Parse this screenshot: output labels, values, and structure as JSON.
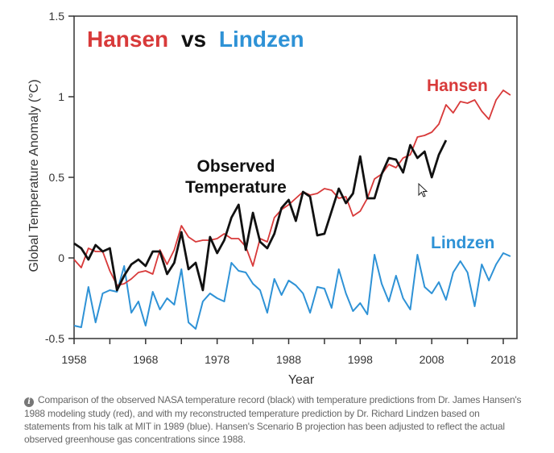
{
  "chart_data": {
    "type": "line",
    "title": "Hansen vs Lindzen",
    "title_parts": [
      {
        "text": "Hansen",
        "color": "#d83a3a"
      },
      {
        "text": "vs",
        "color": "#111111"
      },
      {
        "text": "Lindzen",
        "color": "#2e92d6"
      }
    ],
    "xlabel": "Year",
    "ylabel": "Global Temperature Anomaly (°C)",
    "xlim": [
      1958,
      2020
    ],
    "ylim": [
      -0.5,
      1.5
    ],
    "x_ticks": [
      1958,
      1968,
      1978,
      1988,
      1998,
      2008,
      2018
    ],
    "x_minor_ticks": [
      1963,
      1973,
      1983,
      1993,
      2003,
      2013
    ],
    "y_ticks": [
      -0.5,
      0,
      0.5,
      1,
      1.5
    ],
    "y_tick_labels": [
      "-0.5",
      "0",
      "0.5",
      "1",
      "1.5"
    ],
    "grid": false,
    "series": [
      {
        "name": "Hansen",
        "color": "#d83a3a",
        "x_start": 1958,
        "values": [
          -0.01,
          -0.06,
          0.06,
          0.04,
          0.04,
          -0.08,
          -0.17,
          -0.16,
          -0.13,
          -0.09,
          -0.08,
          -0.1,
          0.05,
          -0.04,
          0.05,
          0.2,
          0.13,
          0.1,
          0.11,
          0.11,
          0.12,
          0.15,
          0.12,
          0.12,
          0.07,
          -0.05,
          0.12,
          0.1,
          0.25,
          0.3,
          0.33,
          0.37,
          0.41,
          0.39,
          0.4,
          0.43,
          0.42,
          0.37,
          0.38,
          0.26,
          0.29,
          0.37,
          0.49,
          0.52,
          0.58,
          0.56,
          0.62,
          0.64,
          0.75,
          0.76,
          0.78,
          0.83,
          0.95,
          0.9,
          0.97,
          0.96,
          0.98,
          0.91,
          0.86,
          0.98,
          1.04,
          1.01
        ],
        "label": "Hansen"
      },
      {
        "name": "Observed Temperature",
        "color": "#111111",
        "x_start": 1958,
        "values": [
          0.09,
          0.06,
          -0.01,
          0.08,
          0.04,
          0.06,
          -0.2,
          -0.11,
          -0.04,
          -0.01,
          -0.05,
          0.04,
          0.04,
          -0.1,
          -0.03,
          0.16,
          -0.07,
          -0.03,
          -0.2,
          0.13,
          0.03,
          0.11,
          0.25,
          0.33,
          0.05,
          0.28,
          0.1,
          0.06,
          0.15,
          0.31,
          0.36,
          0.23,
          0.41,
          0.38,
          0.14,
          0.15,
          0.29,
          0.43,
          0.34,
          0.4,
          0.63,
          0.37,
          0.37,
          0.52,
          0.62,
          0.61,
          0.53,
          0.7,
          0.62,
          0.66,
          0.5,
          0.64,
          0.73
        ],
        "label": "Observed\nTemperature"
      },
      {
        "name": "Lindzen",
        "color": "#2e92d6",
        "x_start": 1958,
        "values": [
          -0.42,
          -0.43,
          -0.18,
          -0.4,
          -0.22,
          -0.2,
          -0.21,
          -0.05,
          -0.34,
          -0.27,
          -0.42,
          -0.21,
          -0.32,
          -0.25,
          -0.29,
          -0.07,
          -0.4,
          -0.44,
          -0.27,
          -0.22,
          -0.25,
          -0.27,
          -0.03,
          -0.08,
          -0.09,
          -0.16,
          -0.2,
          -0.34,
          -0.13,
          -0.23,
          -0.14,
          -0.17,
          -0.22,
          -0.34,
          -0.18,
          -0.19,
          -0.31,
          -0.07,
          -0.22,
          -0.33,
          -0.28,
          -0.35,
          0.02,
          -0.16,
          -0.27,
          -0.11,
          -0.25,
          -0.32,
          0.02,
          -0.18,
          -0.22,
          -0.15,
          -0.26,
          -0.09,
          -0.02,
          -0.09,
          -0.3,
          -0.04,
          -0.14,
          -0.04,
          0.03,
          0.01
        ],
        "label": "Lindzen"
      }
    ],
    "legend": "inline labels"
  },
  "caption": {
    "icon": "info-icon",
    "icon_glyph": "i",
    "text": "Comparison of the observed NASA temperature record (black) with temperature predictions from Dr. James Hansen's 1988 modeling study (red), and with my reconstructed temperature prediction by Dr. Richard Lindzen based on statements from his talk at MIT in 1989 (blue). Hansen's Scenario B projection has been adjusted to reflect the actual observed greenhouse gas concentrations since 1988."
  }
}
